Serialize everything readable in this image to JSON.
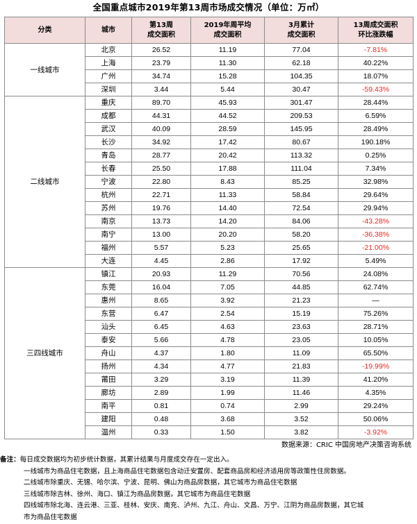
{
  "title": "全国重点城市2019年第13周市场成交情况（单位：万㎡）",
  "headers": {
    "category": "分类",
    "city": "城市",
    "week13_line1": "第13周",
    "week13_line2": "成交面积",
    "avg_line1": "2019年周平均",
    "avg_line2": "成交面积",
    "march_line1": "3月累计",
    "march_line2": "成交面积",
    "change_line1": "13周成交面积",
    "change_line2": "环比涨跌幅"
  },
  "groups": [
    {
      "category": "一线城市",
      "rows": [
        {
          "city": "北京",
          "week13": "26.52",
          "avg": "11.19",
          "march": "77.04",
          "change": "-7.81%",
          "negative": true
        },
        {
          "city": "上海",
          "week13": "23.79",
          "avg": "11.30",
          "march": "62.18",
          "change": "40.22%",
          "negative": false
        },
        {
          "city": "广州",
          "week13": "34.74",
          "avg": "15.28",
          "march": "104.35",
          "change": "18.07%",
          "negative": false
        },
        {
          "city": "深圳",
          "week13": "3.44",
          "avg": "5.44",
          "march": "30.47",
          "change": "-59.43%",
          "negative": true
        }
      ]
    },
    {
      "category": "二线城市",
      "rows": [
        {
          "city": "重庆",
          "week13": "89.70",
          "avg": "45.93",
          "march": "301.47",
          "change": "28.44%",
          "negative": false
        },
        {
          "city": "成都",
          "week13": "44.31",
          "avg": "44.52",
          "march": "209.53",
          "change": "6.59%",
          "negative": false
        },
        {
          "city": "武汉",
          "week13": "40.09",
          "avg": "28.59",
          "march": "145.95",
          "change": "28.49%",
          "negative": false
        },
        {
          "city": "长沙",
          "week13": "34.92",
          "avg": "17.42",
          "march": "80.67",
          "change": "190.18%",
          "negative": false
        },
        {
          "city": "青岛",
          "week13": "28.77",
          "avg": "20.42",
          "march": "113.32",
          "change": "0.25%",
          "negative": false
        },
        {
          "city": "长春",
          "week13": "25.50",
          "avg": "17.88",
          "march": "111.04",
          "change": "7.34%",
          "negative": false
        },
        {
          "city": "宁波",
          "week13": "22.80",
          "avg": "8.43",
          "march": "85.25",
          "change": "32.98%",
          "negative": false
        },
        {
          "city": "杭州",
          "week13": "22.71",
          "avg": "11.33",
          "march": "58.84",
          "change": "29.64%",
          "negative": false
        },
        {
          "city": "苏州",
          "week13": "19.76",
          "avg": "14.40",
          "march": "72.54",
          "change": "29.94%",
          "negative": false
        },
        {
          "city": "南京",
          "week13": "13.73",
          "avg": "14.20",
          "march": "84.06",
          "change": "-43.28%",
          "negative": true
        },
        {
          "city": "南宁",
          "week13": "13.00",
          "avg": "20.20",
          "march": "58.20",
          "change": "-36.38%",
          "negative": true
        },
        {
          "city": "福州",
          "week13": "5.57",
          "avg": "5.23",
          "march": "25.65",
          "change": "-21.00%",
          "negative": true
        },
        {
          "city": "大连",
          "week13": "4.45",
          "avg": "2.86",
          "march": "17.92",
          "change": "5.49%",
          "negative": false
        }
      ]
    },
    {
      "category": "三四线城市",
      "rows": [
        {
          "city": "镇江",
          "week13": "20.93",
          "avg": "11.29",
          "march": "70.56",
          "change": "24.08%",
          "negative": false
        },
        {
          "city": "东莞",
          "week13": "16.04",
          "avg": "7.05",
          "march": "44.85",
          "change": "62.74%",
          "negative": false
        },
        {
          "city": "惠州",
          "week13": "8.65",
          "avg": "3.92",
          "march": "21.23",
          "change": "—",
          "negative": false
        },
        {
          "city": "东营",
          "week13": "6.47",
          "avg": "2.54",
          "march": "15.19",
          "change": "75.26%",
          "negative": false
        },
        {
          "city": "汕头",
          "week13": "6.45",
          "avg": "4.63",
          "march": "23.63",
          "change": "28.71%",
          "negative": false
        },
        {
          "city": "泰安",
          "week13": "5.66",
          "avg": "4.78",
          "march": "23.05",
          "change": "10.05%",
          "negative": false
        },
        {
          "city": "舟山",
          "week13": "4.37",
          "avg": "1.80",
          "march": "11.09",
          "change": "65.50%",
          "negative": false
        },
        {
          "city": "扬州",
          "week13": "4.34",
          "avg": "4.77",
          "march": "21.83",
          "change": "-19.99%",
          "negative": true
        },
        {
          "city": "莆田",
          "week13": "3.29",
          "avg": "3.19",
          "march": "11.39",
          "change": "41.20%",
          "negative": false
        },
        {
          "city": "廊坊",
          "week13": "2.89",
          "avg": "1.99",
          "march": "11.46",
          "change": "4.35%",
          "negative": false
        },
        {
          "city": "南平",
          "week13": "0.81",
          "avg": "0.74",
          "march": "2.99",
          "change": "29.24%",
          "negative": false
        },
        {
          "city": "建阳",
          "week13": "0.48",
          "avg": "3.68",
          "march": "3.52",
          "change": "50.06%",
          "negative": false
        },
        {
          "city": "温州",
          "week13": "0.33",
          "avg": "1.50",
          "march": "3.82",
          "change": "-3.92%",
          "negative": true
        }
      ]
    }
  ],
  "source": "数据来源：CRIC 中国房地产决策咨询系统",
  "notes": {
    "label": "备注：",
    "lines": [
      "每日成交数据均为初步统计数据，其累计结果与月度成交存在一定出入。",
      "一线城市为商品住宅数据，且上海商品住宅数据包含动迁安置房、配套商品房和经济适用房等政策性住房数据。",
      "二线城市除重庆、无锡、哈尔滨、宁波、昆明、佛山为商品房数据，其它城市为商品住宅数据",
      "三线城市除吉林、徐州、海口、镇江为商品房数据，其它城市为商品住宅数据",
      "四线城市除北海、连云港、三亚、桂林、安庆、南充、泸州、九江、舟山、文昌、万宁、江阴为商品房数据，其它城",
      "市为商品住宅数据"
    ]
  },
  "colors": {
    "header_bg": "#f2dcdc",
    "negative": "#e8251f",
    "border": "#8a8a8a"
  }
}
